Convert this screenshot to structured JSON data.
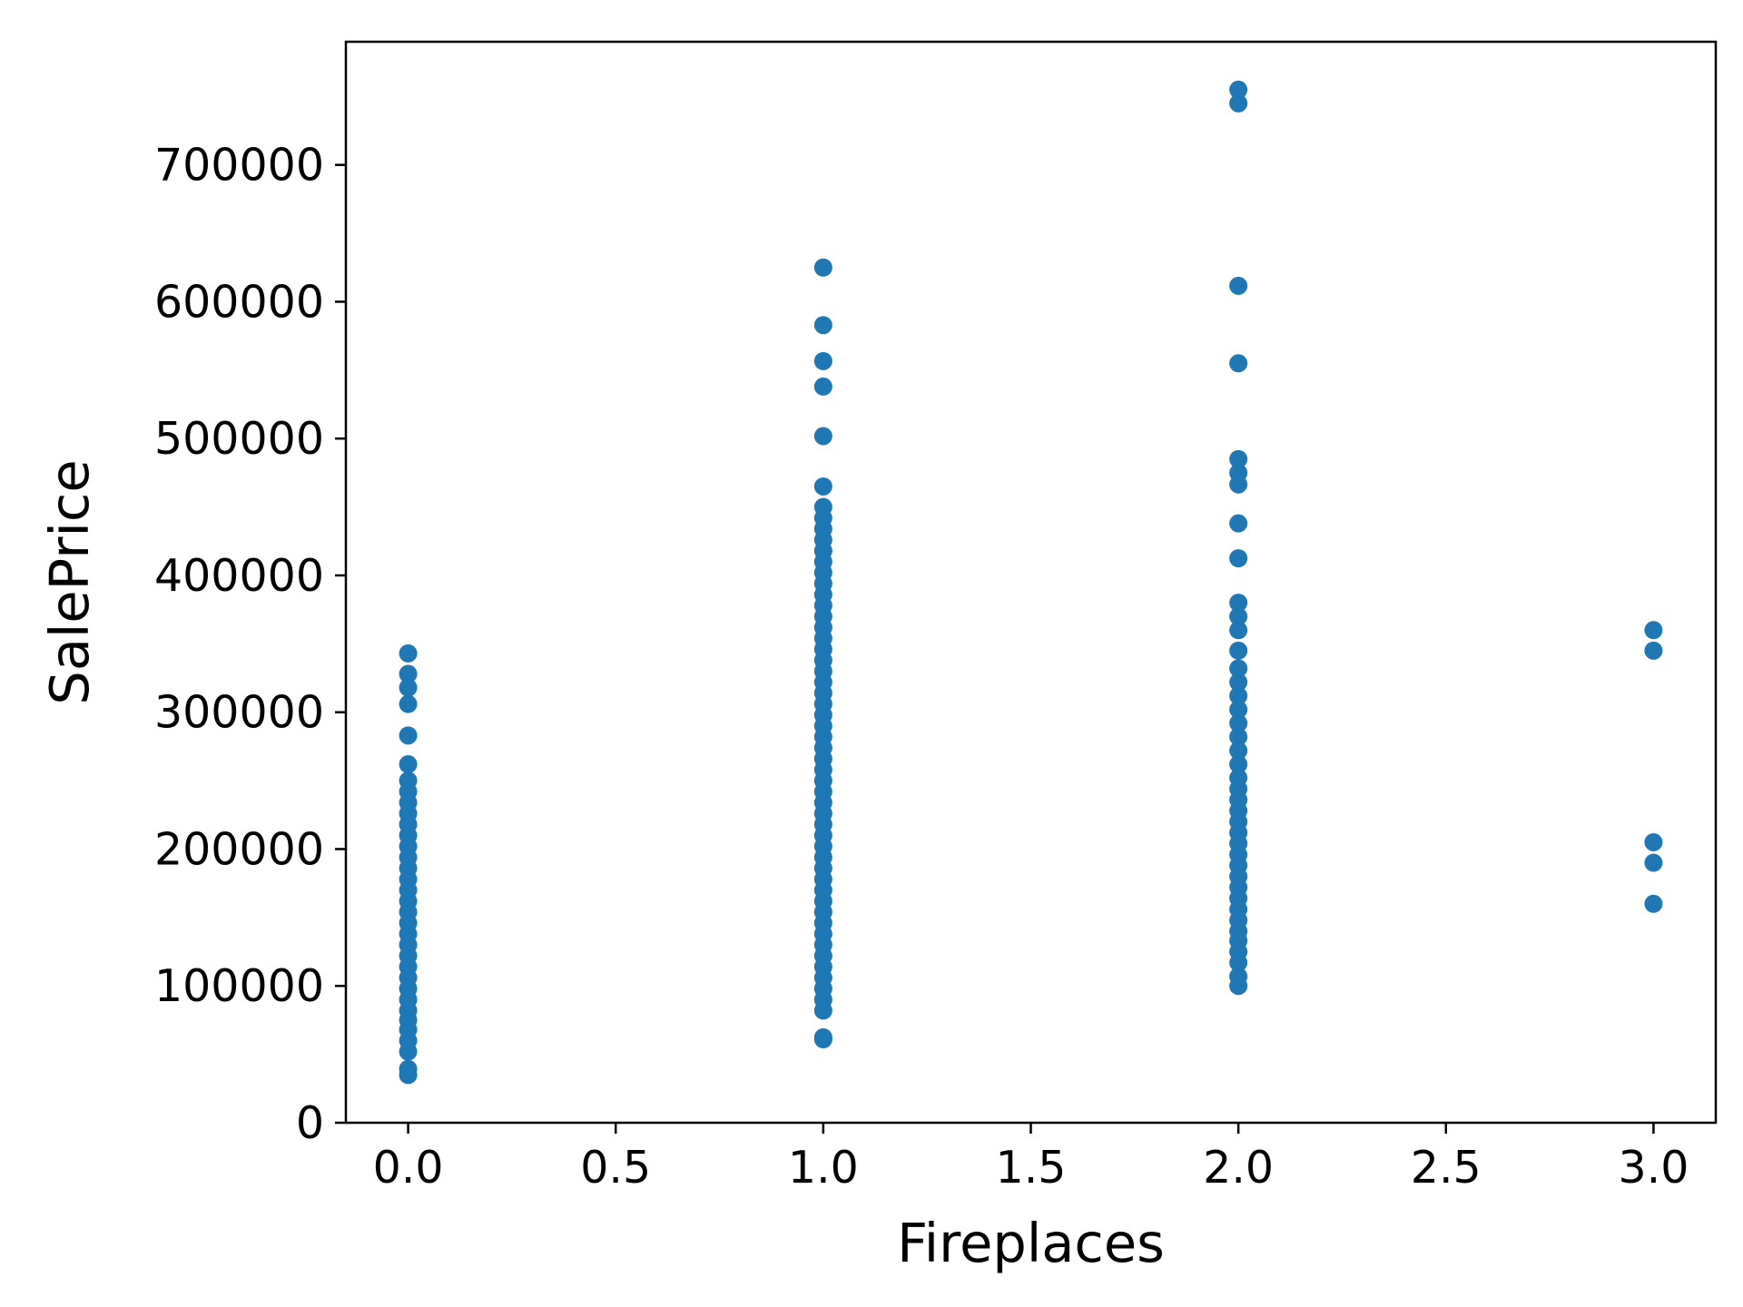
{
  "chart_data": {
    "type": "scatter",
    "title": "",
    "xlabel": "Fireplaces",
    "ylabel": "SalePrice",
    "xlim": [
      -0.15,
      3.15
    ],
    "ylim": [
      0,
      790000
    ],
    "xticks": [
      0.0,
      0.5,
      1.0,
      1.5,
      2.0,
      2.5,
      3.0
    ],
    "xtick_labels": [
      "0.0",
      "0.5",
      "1.0",
      "1.5",
      "2.0",
      "2.5",
      "3.0"
    ],
    "yticks": [
      0,
      100000,
      200000,
      300000,
      400000,
      500000,
      600000,
      700000
    ],
    "ytick_labels": [
      "0",
      "100000",
      "200000",
      "300000",
      "400000",
      "500000",
      "600000",
      "700000"
    ],
    "grid": false,
    "color": "#1f77b4",
    "series": [
      {
        "points": [
          [
            0,
            34900
          ],
          [
            0,
            39300
          ],
          [
            0,
            52000
          ],
          [
            0,
            60000
          ],
          [
            0,
            68000
          ],
          [
            0,
            75000
          ],
          [
            0,
            82000
          ],
          [
            0,
            90000
          ],
          [
            0,
            98000
          ],
          [
            0,
            106000
          ],
          [
            0,
            114000
          ],
          [
            0,
            122000
          ],
          [
            0,
            130000
          ],
          [
            0,
            138000
          ],
          [
            0,
            146000
          ],
          [
            0,
            154000
          ],
          [
            0,
            162000
          ],
          [
            0,
            170000
          ],
          [
            0,
            178000
          ],
          [
            0,
            186000
          ],
          [
            0,
            194000
          ],
          [
            0,
            202000
          ],
          [
            0,
            210000
          ],
          [
            0,
            218000
          ],
          [
            0,
            226000
          ],
          [
            0,
            234000
          ],
          [
            0,
            242000
          ],
          [
            0,
            250000
          ],
          [
            0,
            262000
          ],
          [
            0,
            283000
          ],
          [
            0,
            306000
          ],
          [
            0,
            318000
          ],
          [
            0,
            328000
          ],
          [
            0,
            343000
          ],
          [
            1,
            61000
          ],
          [
            1,
            62400
          ],
          [
            1,
            82000
          ],
          [
            1,
            90000
          ],
          [
            1,
            98000
          ],
          [
            1,
            106000
          ],
          [
            1,
            114000
          ],
          [
            1,
            122000
          ],
          [
            1,
            130000
          ],
          [
            1,
            138000
          ],
          [
            1,
            146000
          ],
          [
            1,
            154000
          ],
          [
            1,
            162000
          ],
          [
            1,
            170000
          ],
          [
            1,
            178000
          ],
          [
            1,
            186000
          ],
          [
            1,
            194000
          ],
          [
            1,
            202000
          ],
          [
            1,
            210000
          ],
          [
            1,
            218000
          ],
          [
            1,
            226000
          ],
          [
            1,
            234000
          ],
          [
            1,
            242000
          ],
          [
            1,
            250000
          ],
          [
            1,
            258000
          ],
          [
            1,
            266000
          ],
          [
            1,
            274000
          ],
          [
            1,
            282000
          ],
          [
            1,
            290000
          ],
          [
            1,
            298000
          ],
          [
            1,
            306000
          ],
          [
            1,
            314000
          ],
          [
            1,
            322000
          ],
          [
            1,
            330000
          ],
          [
            1,
            338000
          ],
          [
            1,
            346000
          ],
          [
            1,
            354000
          ],
          [
            1,
            362000
          ],
          [
            1,
            370000
          ],
          [
            1,
            378000
          ],
          [
            1,
            386000
          ],
          [
            1,
            394000
          ],
          [
            1,
            402000
          ],
          [
            1,
            410000
          ],
          [
            1,
            418000
          ],
          [
            1,
            426000
          ],
          [
            1,
            434000
          ],
          [
            1,
            442000
          ],
          [
            1,
            450000
          ],
          [
            1,
            465000
          ],
          [
            1,
            501800
          ],
          [
            1,
            538000
          ],
          [
            1,
            556600
          ],
          [
            1,
            582900
          ],
          [
            1,
            625000
          ],
          [
            2,
            100000
          ],
          [
            2,
            107000
          ],
          [
            2,
            117000
          ],
          [
            2,
            125000
          ],
          [
            2,
            133000
          ],
          [
            2,
            140000
          ],
          [
            2,
            148000
          ],
          [
            2,
            156000
          ],
          [
            2,
            164000
          ],
          [
            2,
            172000
          ],
          [
            2,
            180000
          ],
          [
            2,
            188000
          ],
          [
            2,
            196000
          ],
          [
            2,
            204000
          ],
          [
            2,
            212000
          ],
          [
            2,
            220000
          ],
          [
            2,
            228000
          ],
          [
            2,
            236000
          ],
          [
            2,
            244000
          ],
          [
            2,
            252000
          ],
          [
            2,
            262000
          ],
          [
            2,
            272000
          ],
          [
            2,
            282000
          ],
          [
            2,
            292000
          ],
          [
            2,
            302000
          ],
          [
            2,
            312000
          ],
          [
            2,
            322000
          ],
          [
            2,
            332000
          ],
          [
            2,
            345000
          ],
          [
            2,
            360000
          ],
          [
            2,
            370000
          ],
          [
            2,
            380000
          ],
          [
            2,
            412500
          ],
          [
            2,
            438000
          ],
          [
            2,
            466500
          ],
          [
            2,
            475000
          ],
          [
            2,
            485000
          ],
          [
            2,
            555000
          ],
          [
            2,
            611657
          ],
          [
            2,
            745000
          ],
          [
            2,
            755000
          ],
          [
            3,
            160000
          ],
          [
            3,
            190000
          ],
          [
            3,
            205000
          ],
          [
            3,
            345000
          ],
          [
            3,
            360000
          ]
        ]
      }
    ]
  }
}
